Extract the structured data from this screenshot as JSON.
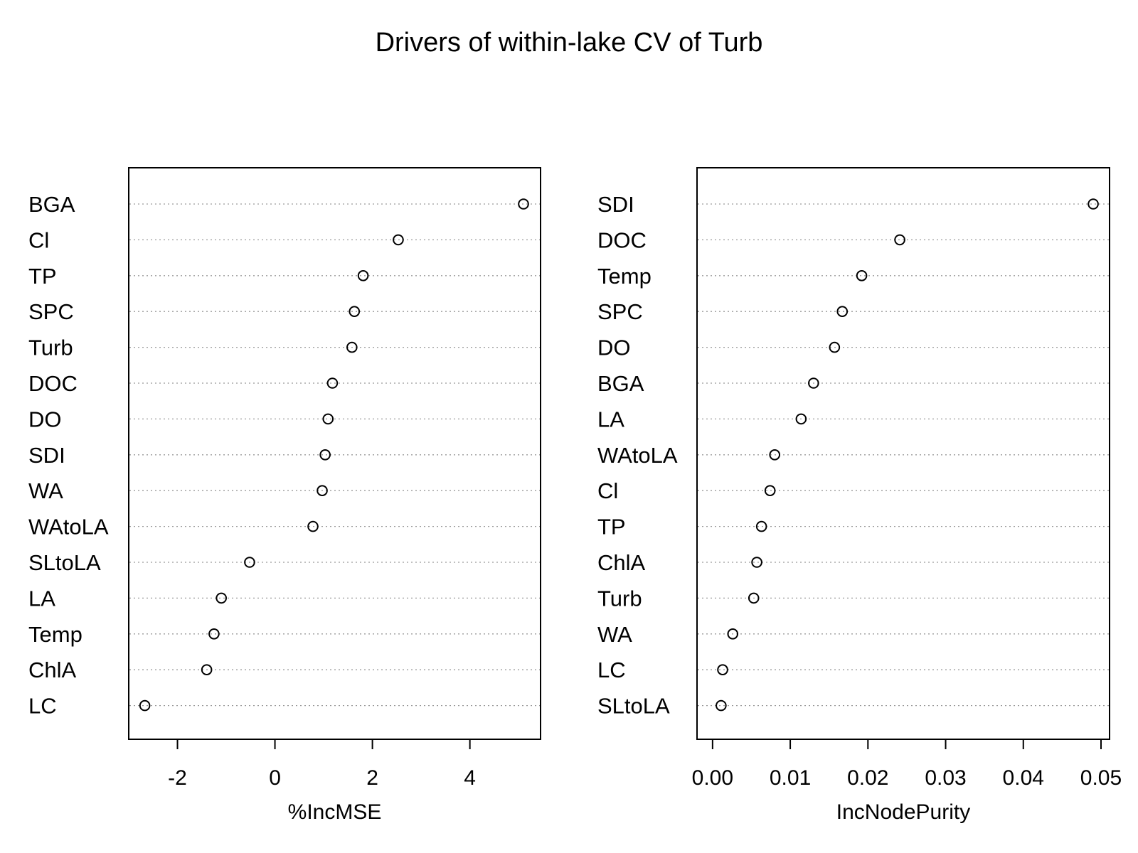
{
  "title": "Drivers of within-lake CV of Turb",
  "colors": {
    "line": "#000000",
    "grid": "#9a9a9a",
    "background": "#ffffff"
  },
  "chart_data": [
    {
      "type": "scatter",
      "variant": "dotchart",
      "xlabel": "%IncMSE",
      "xlim": [
        -3.0,
        5.45
      ],
      "xticks": [
        -2,
        0,
        2,
        4
      ],
      "xtick_labels": [
        "-2",
        "0",
        "2",
        "4"
      ],
      "grid": "horizontal-dotted",
      "categories": [
        "BGA",
        "Cl",
        "TP",
        "SPC",
        "Turb",
        "DOC",
        "DO",
        "SDI",
        "WA",
        "WAtoLA",
        "SLtoLA",
        "LA",
        "Temp",
        "ChlA",
        "LC"
      ],
      "values": [
        5.1,
        2.53,
        1.81,
        1.63,
        1.58,
        1.18,
        1.09,
        1.03,
        0.97,
        0.78,
        -0.52,
        -1.1,
        -1.25,
        -1.4,
        -2.67
      ]
    },
    {
      "type": "scatter",
      "variant": "dotchart",
      "xlabel": "IncNodePurity",
      "xlim": [
        -0.002,
        0.0511
      ],
      "xticks": [
        0.0,
        0.01,
        0.02,
        0.03,
        0.04,
        0.05
      ],
      "xtick_labels": [
        "0.00",
        "0.01",
        "0.02",
        "0.03",
        "0.04",
        "0.05"
      ],
      "grid": "horizontal-dotted",
      "categories": [
        "SDI",
        "DOC",
        "Temp",
        "SPC",
        "DO",
        "BGA",
        "LA",
        "WAtoLA",
        "Cl",
        "TP",
        "ChlA",
        "Turb",
        "WA",
        "LC",
        "SLtoLA"
      ],
      "values": [
        0.049,
        0.0241,
        0.0192,
        0.0167,
        0.0157,
        0.013,
        0.0114,
        0.008,
        0.0074,
        0.0063,
        0.0057,
        0.0053,
        0.0026,
        0.0013,
        0.0011
      ]
    }
  ]
}
